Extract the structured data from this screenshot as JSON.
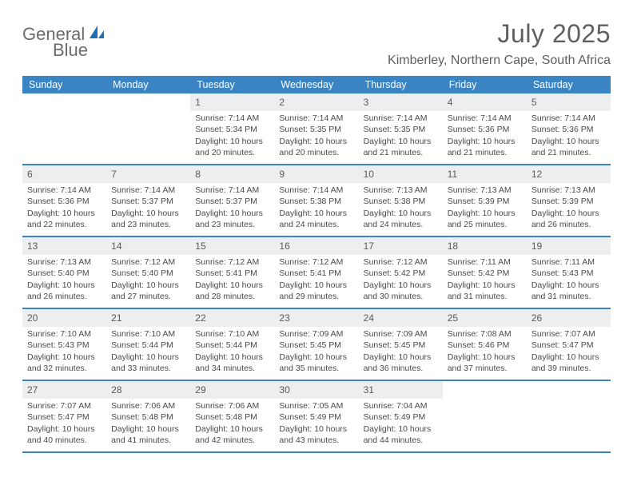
{
  "logo": {
    "part1": "General",
    "part2": "Blue"
  },
  "header": {
    "month_title": "July 2025",
    "location": "Kimberley, Northern Cape, South Africa"
  },
  "colors": {
    "header_bg": "#3b84c4",
    "header_text": "#ffffff",
    "daynum_bg": "#eceeef",
    "text": "#4a4a4a",
    "title_text": "#5f5f5f",
    "logo_blue": "#1f6fb2"
  },
  "day_names": [
    "Sunday",
    "Monday",
    "Tuesday",
    "Wednesday",
    "Thursday",
    "Friday",
    "Saturday"
  ],
  "weeks": [
    [
      {
        "empty": true
      },
      {
        "empty": true
      },
      {
        "day": "1",
        "sunrise": "Sunrise: 7:14 AM",
        "sunset": "Sunset: 5:34 PM",
        "daylight1": "Daylight: 10 hours",
        "daylight2": "and 20 minutes."
      },
      {
        "day": "2",
        "sunrise": "Sunrise: 7:14 AM",
        "sunset": "Sunset: 5:35 PM",
        "daylight1": "Daylight: 10 hours",
        "daylight2": "and 20 minutes."
      },
      {
        "day": "3",
        "sunrise": "Sunrise: 7:14 AM",
        "sunset": "Sunset: 5:35 PM",
        "daylight1": "Daylight: 10 hours",
        "daylight2": "and 21 minutes."
      },
      {
        "day": "4",
        "sunrise": "Sunrise: 7:14 AM",
        "sunset": "Sunset: 5:36 PM",
        "daylight1": "Daylight: 10 hours",
        "daylight2": "and 21 minutes."
      },
      {
        "day": "5",
        "sunrise": "Sunrise: 7:14 AM",
        "sunset": "Sunset: 5:36 PM",
        "daylight1": "Daylight: 10 hours",
        "daylight2": "and 21 minutes."
      }
    ],
    [
      {
        "day": "6",
        "sunrise": "Sunrise: 7:14 AM",
        "sunset": "Sunset: 5:36 PM",
        "daylight1": "Daylight: 10 hours",
        "daylight2": "and 22 minutes."
      },
      {
        "day": "7",
        "sunrise": "Sunrise: 7:14 AM",
        "sunset": "Sunset: 5:37 PM",
        "daylight1": "Daylight: 10 hours",
        "daylight2": "and 23 minutes."
      },
      {
        "day": "8",
        "sunrise": "Sunrise: 7:14 AM",
        "sunset": "Sunset: 5:37 PM",
        "daylight1": "Daylight: 10 hours",
        "daylight2": "and 23 minutes."
      },
      {
        "day": "9",
        "sunrise": "Sunrise: 7:14 AM",
        "sunset": "Sunset: 5:38 PM",
        "daylight1": "Daylight: 10 hours",
        "daylight2": "and 24 minutes."
      },
      {
        "day": "10",
        "sunrise": "Sunrise: 7:13 AM",
        "sunset": "Sunset: 5:38 PM",
        "daylight1": "Daylight: 10 hours",
        "daylight2": "and 24 minutes."
      },
      {
        "day": "11",
        "sunrise": "Sunrise: 7:13 AM",
        "sunset": "Sunset: 5:39 PM",
        "daylight1": "Daylight: 10 hours",
        "daylight2": "and 25 minutes."
      },
      {
        "day": "12",
        "sunrise": "Sunrise: 7:13 AM",
        "sunset": "Sunset: 5:39 PM",
        "daylight1": "Daylight: 10 hours",
        "daylight2": "and 26 minutes."
      }
    ],
    [
      {
        "day": "13",
        "sunrise": "Sunrise: 7:13 AM",
        "sunset": "Sunset: 5:40 PM",
        "daylight1": "Daylight: 10 hours",
        "daylight2": "and 26 minutes."
      },
      {
        "day": "14",
        "sunrise": "Sunrise: 7:12 AM",
        "sunset": "Sunset: 5:40 PM",
        "daylight1": "Daylight: 10 hours",
        "daylight2": "and 27 minutes."
      },
      {
        "day": "15",
        "sunrise": "Sunrise: 7:12 AM",
        "sunset": "Sunset: 5:41 PM",
        "daylight1": "Daylight: 10 hours",
        "daylight2": "and 28 minutes."
      },
      {
        "day": "16",
        "sunrise": "Sunrise: 7:12 AM",
        "sunset": "Sunset: 5:41 PM",
        "daylight1": "Daylight: 10 hours",
        "daylight2": "and 29 minutes."
      },
      {
        "day": "17",
        "sunrise": "Sunrise: 7:12 AM",
        "sunset": "Sunset: 5:42 PM",
        "daylight1": "Daylight: 10 hours",
        "daylight2": "and 30 minutes."
      },
      {
        "day": "18",
        "sunrise": "Sunrise: 7:11 AM",
        "sunset": "Sunset: 5:42 PM",
        "daylight1": "Daylight: 10 hours",
        "daylight2": "and 31 minutes."
      },
      {
        "day": "19",
        "sunrise": "Sunrise: 7:11 AM",
        "sunset": "Sunset: 5:43 PM",
        "daylight1": "Daylight: 10 hours",
        "daylight2": "and 31 minutes."
      }
    ],
    [
      {
        "day": "20",
        "sunrise": "Sunrise: 7:10 AM",
        "sunset": "Sunset: 5:43 PM",
        "daylight1": "Daylight: 10 hours",
        "daylight2": "and 32 minutes."
      },
      {
        "day": "21",
        "sunrise": "Sunrise: 7:10 AM",
        "sunset": "Sunset: 5:44 PM",
        "daylight1": "Daylight: 10 hours",
        "daylight2": "and 33 minutes."
      },
      {
        "day": "22",
        "sunrise": "Sunrise: 7:10 AM",
        "sunset": "Sunset: 5:44 PM",
        "daylight1": "Daylight: 10 hours",
        "daylight2": "and 34 minutes."
      },
      {
        "day": "23",
        "sunrise": "Sunrise: 7:09 AM",
        "sunset": "Sunset: 5:45 PM",
        "daylight1": "Daylight: 10 hours",
        "daylight2": "and 35 minutes."
      },
      {
        "day": "24",
        "sunrise": "Sunrise: 7:09 AM",
        "sunset": "Sunset: 5:45 PM",
        "daylight1": "Daylight: 10 hours",
        "daylight2": "and 36 minutes."
      },
      {
        "day": "25",
        "sunrise": "Sunrise: 7:08 AM",
        "sunset": "Sunset: 5:46 PM",
        "daylight1": "Daylight: 10 hours",
        "daylight2": "and 37 minutes."
      },
      {
        "day": "26",
        "sunrise": "Sunrise: 7:07 AM",
        "sunset": "Sunset: 5:47 PM",
        "daylight1": "Daylight: 10 hours",
        "daylight2": "and 39 minutes."
      }
    ],
    [
      {
        "day": "27",
        "sunrise": "Sunrise: 7:07 AM",
        "sunset": "Sunset: 5:47 PM",
        "daylight1": "Daylight: 10 hours",
        "daylight2": "and 40 minutes."
      },
      {
        "day": "28",
        "sunrise": "Sunrise: 7:06 AM",
        "sunset": "Sunset: 5:48 PM",
        "daylight1": "Daylight: 10 hours",
        "daylight2": "and 41 minutes."
      },
      {
        "day": "29",
        "sunrise": "Sunrise: 7:06 AM",
        "sunset": "Sunset: 5:48 PM",
        "daylight1": "Daylight: 10 hours",
        "daylight2": "and 42 minutes."
      },
      {
        "day": "30",
        "sunrise": "Sunrise: 7:05 AM",
        "sunset": "Sunset: 5:49 PM",
        "daylight1": "Daylight: 10 hours",
        "daylight2": "and 43 minutes."
      },
      {
        "day": "31",
        "sunrise": "Sunrise: 7:04 AM",
        "sunset": "Sunset: 5:49 PM",
        "daylight1": "Daylight: 10 hours",
        "daylight2": "and 44 minutes."
      },
      {
        "empty": true
      },
      {
        "empty": true
      }
    ]
  ]
}
